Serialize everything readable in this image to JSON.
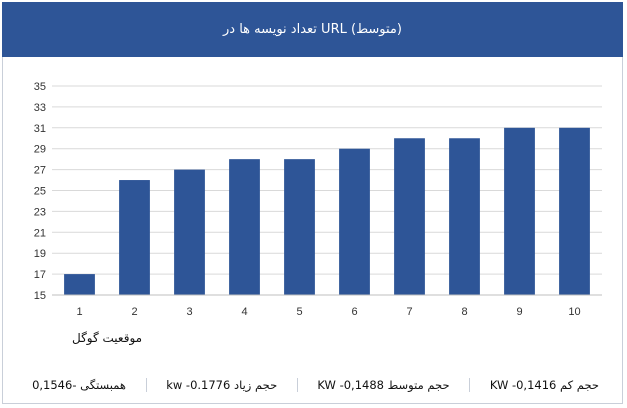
{
  "header": {
    "title": "تعداد نویسه ها در URL (متوسط)"
  },
  "chart_data": {
    "type": "bar",
    "title": "تعداد نویسه ها در URL (متوسط)",
    "categories": [
      "1",
      "2",
      "3",
      "4",
      "5",
      "6",
      "7",
      "8",
      "9",
      "10"
    ],
    "values": [
      17,
      26,
      27,
      28,
      28,
      29,
      30,
      30,
      31,
      31
    ],
    "xlabel": "موقعیت گوگل",
    "ylabel": "",
    "ylim": [
      15,
      35
    ],
    "yticks": [
      15,
      17,
      19,
      21,
      23,
      25,
      27,
      29,
      31,
      33,
      35
    ],
    "grid": true,
    "bar_color": "#2e5597"
  },
  "footer": {
    "stats": [
      "حجم کم KW -0,1416",
      "حجم متوسط KW -0,1488",
      "حجم زیاد kw -0.1776",
      "همبستگی -0,1546"
    ]
  }
}
